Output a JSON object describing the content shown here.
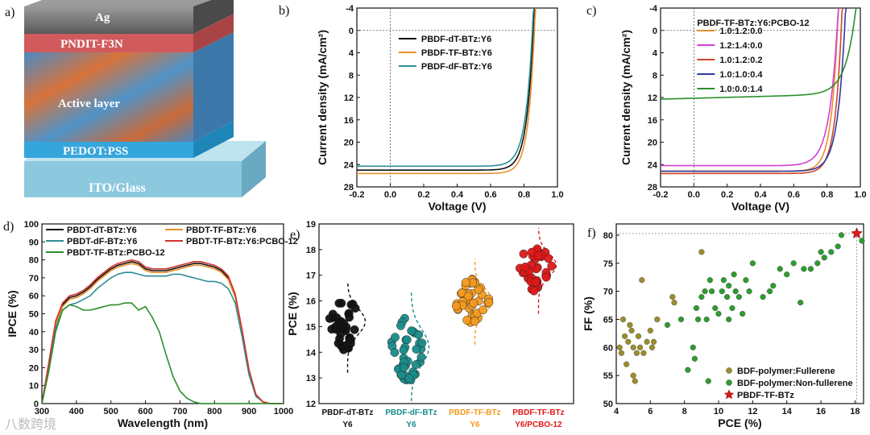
{
  "panels": {
    "a": {
      "label": "a)",
      "layers": [
        "Ag",
        "PNDIT-F3N",
        "Active layer",
        "PEDOT:PSS",
        "ITO/Glass"
      ],
      "colors": [
        "#6e6e6e",
        "#d15a5c",
        "#4f8fc0",
        "#35a6dc",
        "#8cc9df"
      ]
    }
  },
  "chart_data": [
    {
      "id": "b",
      "panel_label": "b)",
      "type": "line",
      "xlabel": "Voltage (V)",
      "ylabel": "Current density (mA/cm²)",
      "xlim": [
        -0.2,
        1.0
      ],
      "ylim": [
        -4,
        28
      ],
      "y_inverted": true,
      "xticks": [
        "-0.2",
        "0.0",
        "0.2",
        "0.4",
        "0.6",
        "0.8",
        "1.0"
      ],
      "yticks": [
        "-4",
        "0",
        "4",
        "8",
        "12",
        "16",
        "20",
        "24",
        "28"
      ],
      "series": [
        {
          "name": "PBDF-dT-BTz:Y6",
          "color": "#111111",
          "jsc": 25.0,
          "voc": 0.855,
          "n": 0.04
        },
        {
          "name": "PBDF-TF-BTz:Y6",
          "color": "#e8902e",
          "jsc": 25.6,
          "voc": 0.862,
          "n": 0.038
        },
        {
          "name": "PBDF-dF-BTz:Y6",
          "color": "#2f8c96",
          "jsc": 24.3,
          "voc": 0.85,
          "n": 0.042
        }
      ]
    },
    {
      "id": "c",
      "panel_label": "c)",
      "type": "line",
      "xlabel": "Voltage (V)",
      "ylabel": "Current density (mA/cm²)",
      "xlim": [
        -0.2,
        1.0
      ],
      "ylim": [
        -4,
        28
      ],
      "y_inverted": true,
      "xticks": [
        "-0.2",
        "0.0",
        "0.2",
        "0.4",
        "0.6",
        "0.8",
        "1.0"
      ],
      "yticks": [
        "-4",
        "0",
        "4",
        "8",
        "12",
        "16",
        "20",
        "24",
        "28"
      ],
      "legend_title": "PBDF-TF-BTz:Y6:PCBO-12",
      "series": [
        {
          "name": "1.0:1.2:0.0",
          "color": "#e8902e",
          "jsc": 25.2,
          "voc": 0.862,
          "n": 0.04
        },
        {
          "name": "1.2:1.4:0.0",
          "color": "#d43fd4",
          "jsc": 24.2,
          "voc": 0.86,
          "n": 0.05
        },
        {
          "name": "1.0:1.2:0.2",
          "color": "#d0462a",
          "jsc": 25.6,
          "voc": 0.885,
          "n": 0.04
        },
        {
          "name": "1.0:1.0:0.4",
          "color": "#303a9c",
          "jsc": 25.2,
          "voc": 0.905,
          "n": 0.045
        },
        {
          "name": "1.0:0.0:1.4",
          "color": "#2a8f2a",
          "jsc": 12.3,
          "voc": 0.96,
          "n": 0.06
        }
      ]
    },
    {
      "id": "d",
      "panel_label": "d)",
      "type": "line",
      "xlabel": "Wavelength (nm)",
      "ylabel": "IPCE (%)",
      "xlim": [
        300,
        1000
      ],
      "ylim": [
        0,
        100
      ],
      "xticks": [
        "300",
        "400",
        "500",
        "600",
        "700",
        "800",
        "900",
        "1000"
      ],
      "yticks": [
        "0",
        "10",
        "20",
        "30",
        "40",
        "50",
        "60",
        "70",
        "80",
        "90",
        "100"
      ],
      "x": [
        300,
        320,
        340,
        360,
        380,
        400,
        420,
        440,
        460,
        480,
        500,
        520,
        540,
        560,
        580,
        600,
        620,
        640,
        660,
        680,
        700,
        720,
        740,
        760,
        780,
        800,
        820,
        840,
        860,
        880,
        900,
        920,
        940,
        960,
        980,
        1000
      ],
      "series": [
        {
          "name": "PBDT-dT-BTz:Y6",
          "color": "#111111",
          "values": [
            0,
            22,
            45,
            55,
            59,
            60,
            62,
            65,
            69,
            72,
            75,
            77,
            78,
            79,
            78,
            75,
            74,
            74,
            74,
            75,
            76,
            77,
            78,
            78,
            77,
            76,
            74,
            70,
            60,
            40,
            18,
            5,
            1,
            0,
            0,
            0
          ]
        },
        {
          "name": "PBDT-TF-BTz:Y6",
          "color": "#e8902e",
          "values": [
            0,
            22,
            44,
            54,
            58,
            59,
            61,
            64,
            68,
            71,
            74,
            76,
            77,
            78,
            77,
            74,
            73,
            73,
            73,
            74,
            75,
            76,
            77,
            77,
            76,
            75,
            73,
            69,
            59,
            39,
            17,
            5,
            1,
            0,
            0,
            0
          ]
        },
        {
          "name": "PBDT-dF-BTz:Y6",
          "color": "#2f8c96",
          "values": [
            0,
            20,
            42,
            52,
            55,
            56,
            58,
            60,
            64,
            67,
            70,
            72,
            73,
            73,
            72,
            71,
            71,
            71,
            71,
            72,
            72,
            71,
            70,
            69,
            68,
            68,
            67,
            64,
            56,
            37,
            16,
            4,
            1,
            0,
            0,
            0
          ]
        },
        {
          "name": "PBDT-TF-BTz:Y6:PCBO-12",
          "color": "#d0342c",
          "values": [
            0,
            23,
            46,
            56,
            60,
            61,
            63,
            66,
            70,
            73,
            76,
            78,
            79,
            80,
            79,
            76,
            75,
            75,
            75,
            76,
            77,
            78,
            79,
            79,
            78,
            77,
            75,
            71,
            61,
            41,
            19,
            5,
            1,
            0,
            0,
            0
          ]
        },
        {
          "name": "PBDT-TF-BTz:PCBO-12",
          "color": "#2a8f2a",
          "values": [
            0,
            18,
            40,
            52,
            55,
            54,
            52,
            52,
            53,
            54,
            55,
            55,
            56,
            56,
            52,
            54,
            48,
            40,
            27,
            15,
            7,
            3,
            1,
            0,
            0,
            0,
            0,
            0,
            0,
            0,
            0,
            0,
            0,
            0,
            0,
            0
          ]
        }
      ]
    },
    {
      "id": "e",
      "panel_label": "e)",
      "type": "scatter",
      "ylabel": "PCE (%)",
      "ylim": [
        12,
        19
      ],
      "yticks": [
        "12",
        "13",
        "14",
        "15",
        "16",
        "17",
        "18",
        "19"
      ],
      "groups": [
        {
          "line1": "PBDF-dT-BTz",
          "line2": "Y6",
          "color": "#111111",
          "label_color": "#111111",
          "mean": 15.2,
          "min": 14.0,
          "max": 16.0,
          "n": 40
        },
        {
          "line1": "PBDF-dF-BTz",
          "line2": "Y6",
          "color": "#1a8c8a",
          "label_color": "#1a8c8a",
          "mean": 14.2,
          "min": 12.9,
          "max": 15.6,
          "n": 40
        },
        {
          "line1": "PBDF-TF-BTz",
          "line2": "Y6",
          "color": "#f39a1f",
          "label_color": "#f39a1f",
          "mean": 16.0,
          "min": 15.1,
          "max": 16.9,
          "n": 40
        },
        {
          "line1": "PBDF-TF-BTz",
          "line2": "Y6/PCBO-12",
          "color": "#e01818",
          "label_color": "#e01818",
          "mean": 17.4,
          "min": 16.3,
          "max": 18.1,
          "n": 40
        }
      ]
    },
    {
      "id": "f",
      "panel_label": "f)",
      "type": "scatter",
      "xlabel": "PCE (%)",
      "ylabel": "FF (%)",
      "xlim": [
        4,
        18.5
      ],
      "ylim": [
        50,
        82
      ],
      "xticks": [
        "4",
        "6",
        "8",
        "10",
        "12",
        "14",
        "16",
        "18"
      ],
      "yticks": [
        "50",
        "55",
        "60",
        "65",
        "70",
        "75",
        "80"
      ],
      "series": [
        {
          "name": "BDF-polymer:Fullerene",
          "color": "#9c8d2c",
          "points": [
            [
              4.2,
              60
            ],
            [
              4.4,
              65
            ],
            [
              4.5,
              62
            ],
            [
              4.6,
              57
            ],
            [
              4.7,
              61
            ],
            [
              4.8,
              64
            ],
            [
              5.0,
              60
            ],
            [
              5.0,
              55
            ],
            [
              5.1,
              54
            ],
            [
              5.2,
              59
            ],
            [
              5.3,
              62
            ],
            [
              5.4,
              60
            ],
            [
              5.5,
              72
            ],
            [
              5.6,
              59
            ],
            [
              5.8,
              61
            ],
            [
              6.0,
              63
            ],
            [
              6.1,
              60
            ],
            [
              6.2,
              61
            ],
            [
              6.4,
              65
            ],
            [
              7.3,
              69
            ],
            [
              7.4,
              68
            ],
            [
              9.0,
              77
            ],
            [
              4.3,
              59
            ],
            [
              4.9,
              63
            ]
          ]
        },
        {
          "name": "BDF-polymer:Non-fullerene",
          "color": "#2e9c2e",
          "points": [
            [
              7.0,
              64
            ],
            [
              7.8,
              65
            ],
            [
              8.2,
              56
            ],
            [
              8.5,
              60
            ],
            [
              8.6,
              58
            ],
            [
              8.7,
              67
            ],
            [
              8.8,
              65
            ],
            [
              9.0,
              69
            ],
            [
              9.2,
              70
            ],
            [
              9.3,
              65
            ],
            [
              9.4,
              54
            ],
            [
              9.6,
              70
            ],
            [
              9.8,
              67
            ],
            [
              10.0,
              66
            ],
            [
              10.2,
              70
            ],
            [
              10.3,
              72
            ],
            [
              10.5,
              69
            ],
            [
              10.6,
              71
            ],
            [
              10.8,
              67
            ],
            [
              10.9,
              73
            ],
            [
              11.0,
              70
            ],
            [
              11.2,
              69
            ],
            [
              11.4,
              66
            ],
            [
              11.6,
              72
            ],
            [
              11.8,
              70
            ],
            [
              12.0,
              75
            ],
            [
              12.6,
              69
            ],
            [
              13.0,
              70
            ],
            [
              13.2,
              71
            ],
            [
              13.6,
              74
            ],
            [
              14.0,
              73
            ],
            [
              14.4,
              75
            ],
            [
              14.8,
              68
            ],
            [
              15.0,
              74
            ],
            [
              15.4,
              74
            ],
            [
              15.8,
              75
            ],
            [
              16.0,
              77
            ],
            [
              16.2,
              76
            ],
            [
              16.6,
              77
            ],
            [
              17.0,
              78
            ],
            [
              17.2,
              80
            ],
            [
              18.4,
              79
            ],
            [
              10.6,
              65
            ],
            [
              9.5,
              72
            ]
          ]
        },
        {
          "name": "PBDF-TF-BTz",
          "color": "#e01818",
          "marker": "star",
          "points": [
            [
              18.1,
              80.3
            ]
          ]
        }
      ],
      "ref_lines": {
        "x": 18.1,
        "y": 80.3
      }
    }
  ],
  "watermark": "八数跨境"
}
